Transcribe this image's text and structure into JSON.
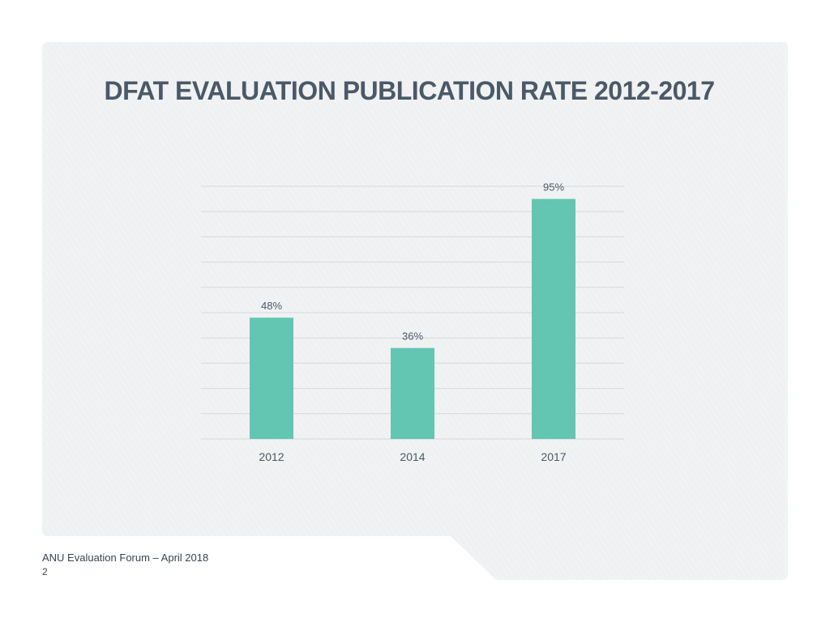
{
  "slide": {
    "title": "DFAT EVALUATION PUBLICATION RATE 2012-2017",
    "footer": "ANU Evaluation Forum – April 2018",
    "page_number": "2"
  },
  "colors": {
    "bar": "#62c6b3",
    "panel": "#f1f2f3",
    "title": "#4a5968",
    "label": "#4a5968",
    "gridline": "#d6d8da"
  },
  "chart_data": {
    "type": "bar",
    "categories": [
      "2012",
      "2014",
      "2017"
    ],
    "values": [
      48,
      36,
      95
    ],
    "value_labels": [
      "48%",
      "36%",
      "95%"
    ],
    "title": "DFAT EVALUATION PUBLICATION RATE 2012-2017",
    "xlabel": "",
    "ylabel": "",
    "ylim": [
      0,
      100
    ],
    "grid": true,
    "legend": "none"
  }
}
